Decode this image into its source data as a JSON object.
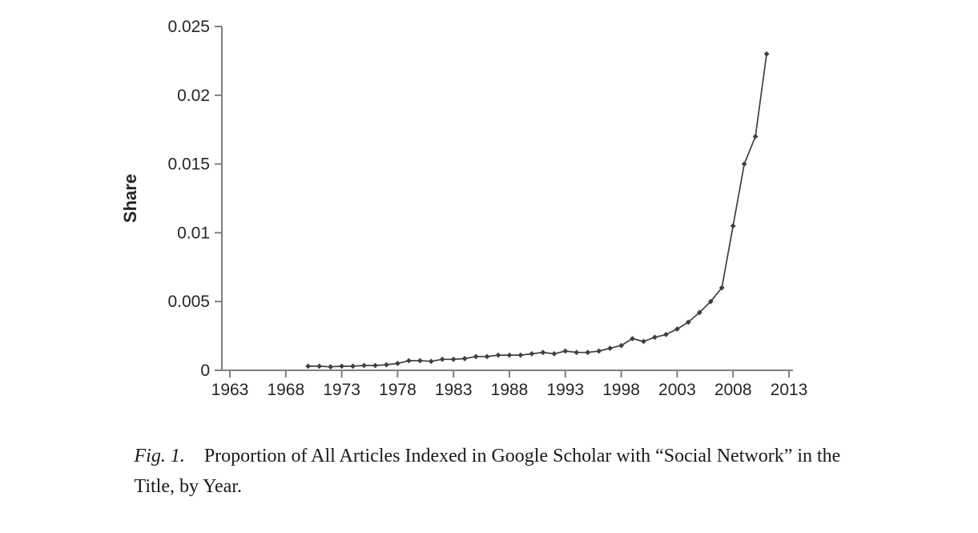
{
  "caption": {
    "fig_label": "Fig. 1.",
    "line1": "Proportion of All Articles Indexed in Google Scholar with “Social",
    "line2": "Network” in the Title, by Year."
  },
  "chart_data": {
    "type": "line",
    "title": "",
    "xlabel": "",
    "ylabel": "Share",
    "xlim": [
      1963,
      2013
    ],
    "ylim": [
      0,
      0.025
    ],
    "x_ticks": [
      1963,
      1968,
      1973,
      1978,
      1983,
      1988,
      1993,
      1998,
      2003,
      2008,
      2013
    ],
    "y_ticks": [
      0,
      0.005,
      0.01,
      0.015,
      0.02,
      0.025
    ],
    "grid": false,
    "legend_position": "none",
    "marker": "diamond",
    "line_color": "#3f3f3f",
    "axis_color": "#7f7f7f",
    "text_color": "#262626",
    "series": [
      {
        "name": "Share of Google Scholar articles with \"Social Network\" in title",
        "x": [
          1970,
          1971,
          1972,
          1973,
          1974,
          1975,
          1976,
          1977,
          1978,
          1979,
          1980,
          1981,
          1982,
          1983,
          1984,
          1985,
          1986,
          1987,
          1988,
          1989,
          1990,
          1991,
          1992,
          1993,
          1994,
          1995,
          1996,
          1997,
          1998,
          1999,
          2000,
          2001,
          2002,
          2003,
          2004,
          2005,
          2006,
          2007,
          2008,
          2009,
          2010,
          2011
        ],
        "y": [
          0.0003,
          0.0003,
          0.00025,
          0.0003,
          0.0003,
          0.00035,
          0.00035,
          0.0004,
          0.0005,
          0.0007,
          0.0007,
          0.00065,
          0.0008,
          0.0008,
          0.00085,
          0.001,
          0.001,
          0.0011,
          0.0011,
          0.0011,
          0.0012,
          0.0013,
          0.0012,
          0.0014,
          0.0013,
          0.0013,
          0.0014,
          0.0016,
          0.0018,
          0.0023,
          0.0021,
          0.0024,
          0.0026,
          0.003,
          0.0035,
          0.0042,
          0.005,
          0.006,
          0.0105,
          0.015,
          0.017,
          0.023
        ]
      }
    ]
  }
}
